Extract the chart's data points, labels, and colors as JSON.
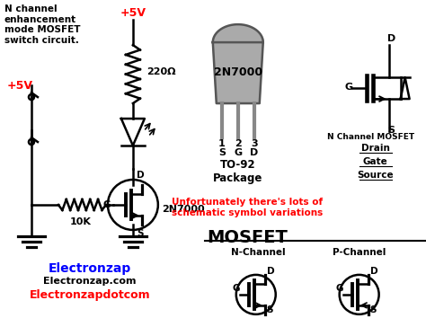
{
  "bg_color": "#ffffff",
  "title_text": "N channel\nenhancement\nmode MOSFET\nswitch circuit.",
  "plus5v_top": "+5V",
  "plus5v_left": "+5V",
  "resistor_label": "220Ω",
  "transistor_label": "2N7000",
  "resistor2_label": "10K",
  "pin_labels": [
    "1",
    "2",
    "3",
    "S",
    "G",
    "D"
  ],
  "n_channel_mosfet": "N Channel MOSFET",
  "drain_label": "Drain",
  "gate_label": "Gate",
  "source_label": "Source",
  "warning_text": "Unfortunately there's lots of\nschematic symbol variations",
  "mosfet_label": "MOSFET",
  "nchannel_label": "N-Channel",
  "pchannel_label": "P-Channel",
  "brand_blue": "Electronzap",
  "brand_black": "Electronzap.com",
  "brand_red": "Electronzapdotcom",
  "red": "#ff0000",
  "blue": "#0000ff",
  "black": "#000000",
  "gray": "#808080",
  "dark_gray": "#555555"
}
